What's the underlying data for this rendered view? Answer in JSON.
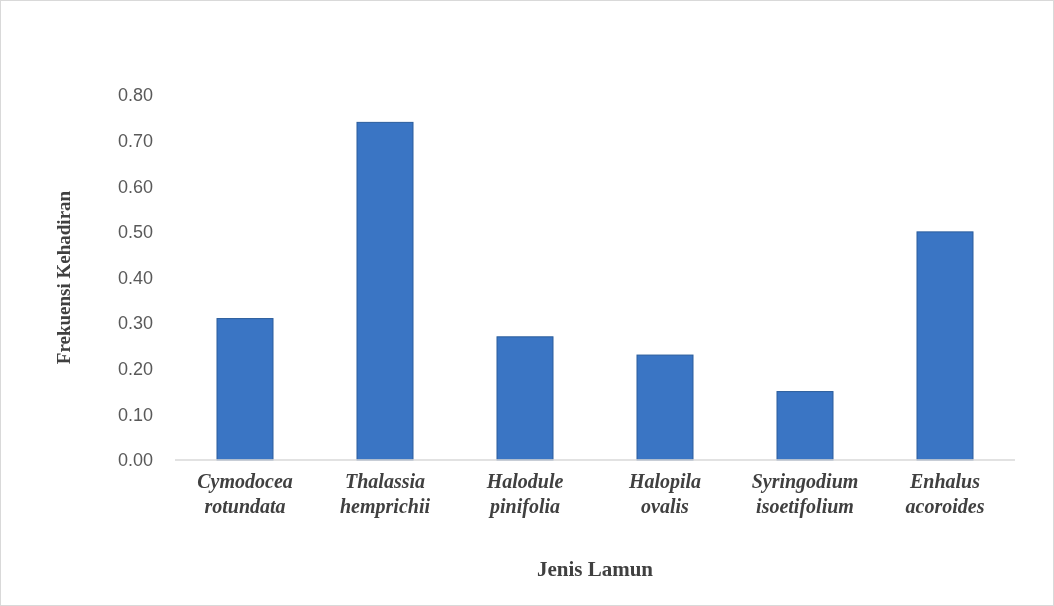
{
  "chart_data": {
    "type": "bar",
    "xlabel": "Jenis Lamun",
    "ylabel": "Frekuensi Kehadiran",
    "categories": [
      "Cymodocea rotundata",
      "Thalassia hemprichii",
      "Halodule pinifolia",
      "Halopila ovalis",
      "Syringodium isoetifolium",
      "Enhalus acoroides"
    ],
    "values": [
      0.31,
      0.74,
      0.27,
      0.23,
      0.15,
      0.5
    ],
    "color": "#3a75c4",
    "ylim": [
      0,
      0.8
    ],
    "yticks": [
      {
        "value": 0,
        "label": "0.00"
      },
      {
        "value": 0.1,
        "label": "0.10"
      },
      {
        "value": 0.2,
        "label": "0.20"
      },
      {
        "value": 0.3,
        "label": "0.30"
      },
      {
        "value": 0.4,
        "label": "0.40"
      },
      {
        "value": 0.5,
        "label": "0.50"
      },
      {
        "value": 0.6,
        "label": "0.60"
      },
      {
        "value": 0.7,
        "label": "0.70"
      },
      {
        "value": 0.8,
        "label": "0.80"
      }
    ],
    "grid": false
  }
}
